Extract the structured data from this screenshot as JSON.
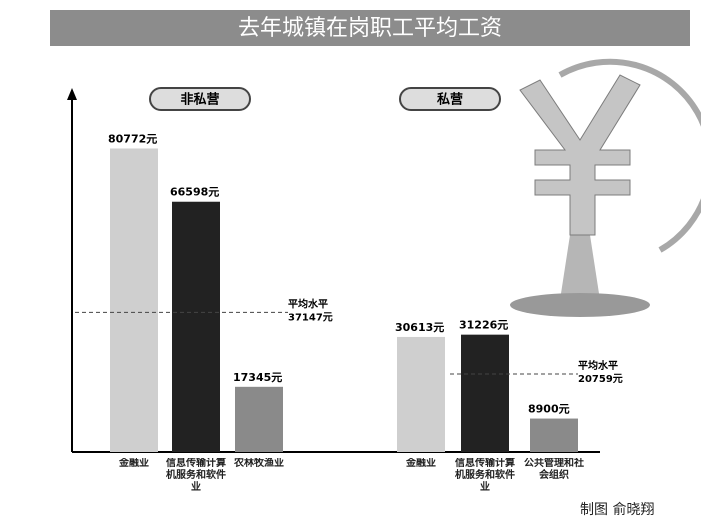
{
  "chart_data": {
    "type": "grouped-bar",
    "title": "去年城镇在岗职工平均工资",
    "credit": "制图 俞晓翔",
    "ylim": [
      0,
      95000
    ],
    "groups": [
      {
        "name": "非私营",
        "categories": [
          "金融业",
          "信息传输计算机服务和软件业",
          "农林牧渔业"
        ],
        "values": [
          80772,
          66598,
          17345
        ],
        "value_labels": [
          "80772元",
          "66598元",
          "17345元"
        ],
        "colors": [
          "#cfcfcf",
          "#222222",
          "#8a8a8a"
        ],
        "average_title": "平均水平",
        "average": 37147,
        "average_label": "37147元"
      },
      {
        "name": "私营",
        "categories": [
          "金融业",
          "信息传输计算机服务和软件业",
          "公共管理和社会组织"
        ],
        "values": [
          30613,
          31226,
          8900
        ],
        "value_labels": [
          "30613元",
          "31226元",
          "8900元"
        ],
        "colors": [
          "#cfcfcf",
          "#222222",
          "#8a8a8a"
        ],
        "average_title": "平均水平",
        "average": 20759,
        "average_label": "20759元"
      }
    ]
  }
}
